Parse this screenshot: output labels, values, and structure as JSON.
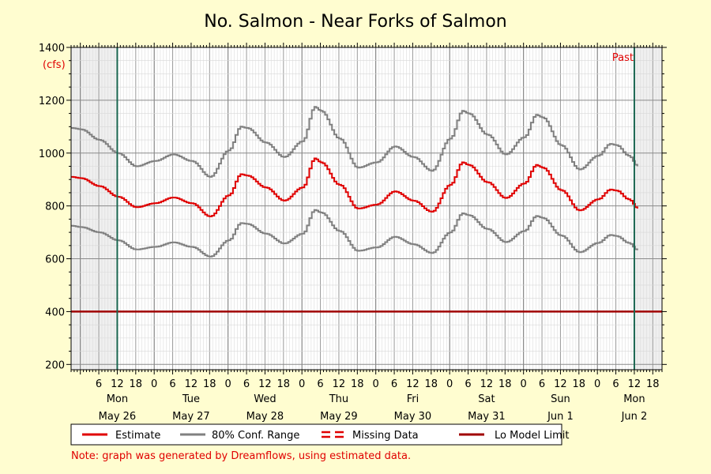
{
  "chart_data": {
    "type": "line",
    "title": "No. Salmon - Near Forks of Salmon",
    "ylabel": "(cfs)",
    "ylim": [
      180,
      1400
    ],
    "yticks": [
      200,
      400,
      600,
      800,
      1000,
      1200,
      1400
    ],
    "x_start": "2025-05-25T21:00",
    "x_end": "2025-06-02T21:00",
    "now": "2025-05-26T12:00",
    "past_end": "2025-06-02T12:00",
    "past_label": "Past",
    "x_hour_labels": [
      "6",
      "12",
      "18",
      "0",
      "6",
      "12",
      "18",
      "0",
      "6",
      "12",
      "18",
      "0",
      "6",
      "12",
      "18",
      "0",
      "6",
      "12",
      "18",
      "0",
      "6",
      "12",
      "18",
      "0",
      "6",
      "12",
      "18",
      "0",
      "6",
      "12",
      "18",
      "0",
      "6",
      "12",
      "18"
    ],
    "day_labels": [
      {
        "day": "Mon",
        "date": "May 26",
        "t": "2025-05-26T12:00"
      },
      {
        "day": "Tue",
        "date": "May 27",
        "t": "2025-05-27T12:00"
      },
      {
        "day": "Wed",
        "date": "May 28",
        "t": "2025-05-28T12:00"
      },
      {
        "day": "Thu",
        "date": "May 29",
        "t": "2025-05-29T12:00"
      },
      {
        "day": "Fri",
        "date": "May 30",
        "t": "2025-05-30T12:00"
      },
      {
        "day": "Sat",
        "date": "May 31",
        "t": "2025-05-31T12:00"
      },
      {
        "day": "Sun",
        "date": "Jun 1",
        "t": "2025-06-01T12:00"
      },
      {
        "day": "Mon",
        "date": "Jun 2",
        "t": "2025-06-02T12:00"
      }
    ],
    "lo_model_limit": 400,
    "series": [
      {
        "name": "Estimate",
        "color": "#e00000",
        "points": [
          [
            "2025-05-25T21:00",
            910
          ],
          [
            "2025-05-26T00:00",
            905
          ],
          [
            "2025-05-26T06:00",
            875
          ],
          [
            "2025-05-26T12:00",
            835
          ],
          [
            "2025-05-26T18:00",
            795
          ],
          [
            "2025-05-27T00:00",
            810
          ],
          [
            "2025-05-27T06:00",
            832
          ],
          [
            "2025-05-27T12:00",
            810
          ],
          [
            "2025-05-27T18:00",
            760
          ],
          [
            "2025-05-28T00:00",
            840
          ],
          [
            "2025-05-28T04:00",
            920
          ],
          [
            "2025-05-28T06:00",
            915
          ],
          [
            "2025-05-28T12:00",
            870
          ],
          [
            "2025-05-28T18:00",
            820
          ],
          [
            "2025-05-29T00:00",
            870
          ],
          [
            "2025-05-29T04:00",
            980
          ],
          [
            "2025-05-29T06:00",
            965
          ],
          [
            "2025-05-29T12:00",
            880
          ],
          [
            "2025-05-29T18:00",
            790
          ],
          [
            "2025-05-30T00:00",
            805
          ],
          [
            "2025-05-30T06:00",
            855
          ],
          [
            "2025-05-30T12:00",
            820
          ],
          [
            "2025-05-30T18:00",
            778
          ],
          [
            "2025-05-31T00:00",
            880
          ],
          [
            "2025-05-31T04:00",
            965
          ],
          [
            "2025-05-31T06:00",
            955
          ],
          [
            "2025-05-31T12:00",
            890
          ],
          [
            "2025-05-31T18:00",
            830
          ],
          [
            "2025-06-01T00:00",
            885
          ],
          [
            "2025-06-01T04:00",
            955
          ],
          [
            "2025-06-01T06:00",
            945
          ],
          [
            "2025-06-01T12:00",
            860
          ],
          [
            "2025-06-01T18:00",
            783
          ],
          [
            "2025-06-02T00:00",
            825
          ],
          [
            "2025-06-02T04:00",
            862
          ],
          [
            "2025-06-02T06:00",
            858
          ],
          [
            "2025-06-02T10:00",
            825
          ],
          [
            "2025-06-02T13:00",
            790
          ]
        ]
      },
      {
        "name": "80% Conf. Range",
        "role": "upper",
        "color": "#808080",
        "points": [
          [
            "2025-05-25T21:00",
            1095
          ],
          [
            "2025-05-26T00:00",
            1090
          ],
          [
            "2025-05-26T06:00",
            1050
          ],
          [
            "2025-05-26T12:00",
            1000
          ],
          [
            "2025-05-26T18:00",
            950
          ],
          [
            "2025-05-27T00:00",
            970
          ],
          [
            "2025-05-27T06:00",
            995
          ],
          [
            "2025-05-27T12:00",
            970
          ],
          [
            "2025-05-27T18:00",
            910
          ],
          [
            "2025-05-28T00:00",
            1010
          ],
          [
            "2025-05-28T04:00",
            1100
          ],
          [
            "2025-05-28T06:00",
            1095
          ],
          [
            "2025-05-28T12:00",
            1040
          ],
          [
            "2025-05-28T18:00",
            985
          ],
          [
            "2025-05-29T00:00",
            1045
          ],
          [
            "2025-05-29T04:00",
            1175
          ],
          [
            "2025-05-29T06:00",
            1160
          ],
          [
            "2025-05-29T12:00",
            1055
          ],
          [
            "2025-05-29T18:00",
            945
          ],
          [
            "2025-05-30T00:00",
            965
          ],
          [
            "2025-05-30T06:00",
            1025
          ],
          [
            "2025-05-30T12:00",
            985
          ],
          [
            "2025-05-30T18:00",
            933
          ],
          [
            "2025-05-31T00:00",
            1055
          ],
          [
            "2025-05-31T04:00",
            1160
          ],
          [
            "2025-05-31T06:00",
            1150
          ],
          [
            "2025-05-31T12:00",
            1070
          ],
          [
            "2025-05-31T18:00",
            995
          ],
          [
            "2025-06-01T00:00",
            1060
          ],
          [
            "2025-06-01T04:00",
            1145
          ],
          [
            "2025-06-01T06:00",
            1135
          ],
          [
            "2025-06-01T12:00",
            1030
          ],
          [
            "2025-06-01T18:00",
            938
          ],
          [
            "2025-06-02T00:00",
            990
          ],
          [
            "2025-06-02T04:00",
            1035
          ],
          [
            "2025-06-02T06:00",
            1030
          ],
          [
            "2025-06-02T10:00",
            990
          ],
          [
            "2025-06-02T13:00",
            950
          ]
        ]
      },
      {
        "name": "80% Conf. Range",
        "role": "lower",
        "color": "#808080",
        "points": [
          [
            "2025-05-25T21:00",
            725
          ],
          [
            "2025-05-26T00:00",
            720
          ],
          [
            "2025-05-26T06:00",
            700
          ],
          [
            "2025-05-26T12:00",
            670
          ],
          [
            "2025-05-26T18:00",
            635
          ],
          [
            "2025-05-27T00:00",
            645
          ],
          [
            "2025-05-27T06:00",
            662
          ],
          [
            "2025-05-27T12:00",
            645
          ],
          [
            "2025-05-27T18:00",
            608
          ],
          [
            "2025-05-28T00:00",
            670
          ],
          [
            "2025-05-28T04:00",
            735
          ],
          [
            "2025-05-28T06:00",
            732
          ],
          [
            "2025-05-28T12:00",
            695
          ],
          [
            "2025-05-28T18:00",
            658
          ],
          [
            "2025-05-29T00:00",
            695
          ],
          [
            "2025-05-29T04:00",
            785
          ],
          [
            "2025-05-29T06:00",
            775
          ],
          [
            "2025-05-29T12:00",
            705
          ],
          [
            "2025-05-29T18:00",
            630
          ],
          [
            "2025-05-30T00:00",
            643
          ],
          [
            "2025-05-30T06:00",
            683
          ],
          [
            "2025-05-30T12:00",
            655
          ],
          [
            "2025-05-30T18:00",
            622
          ],
          [
            "2025-05-31T00:00",
            700
          ],
          [
            "2025-05-31T04:00",
            772
          ],
          [
            "2025-05-31T06:00",
            765
          ],
          [
            "2025-05-31T12:00",
            713
          ],
          [
            "2025-05-31T18:00",
            663
          ],
          [
            "2025-06-01T00:00",
            705
          ],
          [
            "2025-06-01T04:00",
            762
          ],
          [
            "2025-06-01T06:00",
            755
          ],
          [
            "2025-06-01T12:00",
            688
          ],
          [
            "2025-06-01T18:00",
            625
          ],
          [
            "2025-06-02T00:00",
            660
          ],
          [
            "2025-06-02T04:00",
            690
          ],
          [
            "2025-06-02T06:00",
            686
          ],
          [
            "2025-06-02T10:00",
            660
          ],
          [
            "2025-06-02T13:00",
            632
          ]
        ]
      }
    ],
    "colors": {
      "estimate": "#e00000",
      "conf_range": "#808080",
      "missing": "#e00000",
      "lo_limit": "#a00000",
      "now_line": "#1a6650",
      "past_shade": "#efefef",
      "background": "#fffdd0"
    },
    "legend": [
      {
        "label": "Estimate",
        "style": "estimate"
      },
      {
        "label": "80% Conf. Range",
        "style": "conf"
      },
      {
        "label": "Missing Data",
        "style": "missing"
      },
      {
        "label": "Lo Model Limit",
        "style": "lolimit"
      }
    ],
    "note": "Note: graph was generated by Dreamflows, using estimated data."
  }
}
